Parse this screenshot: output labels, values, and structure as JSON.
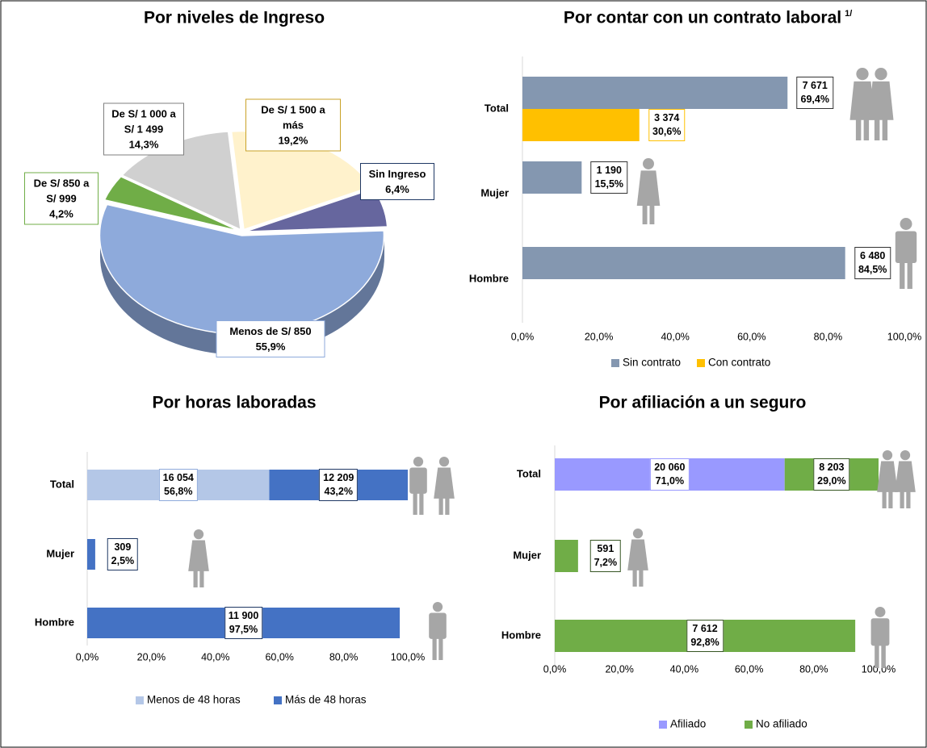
{
  "chart_data": [
    {
      "type": "pie",
      "title": "Por niveles de Ingreso",
      "categories": [
        "De S/ 1 500 a más",
        "Sin Ingreso",
        "Menos de S/ 850",
        "De S/ 850 a S/ 999",
        "De S/ 1 000 a S/ 1 499"
      ],
      "values": [
        19.2,
        6.4,
        55.9,
        4.2,
        14.3
      ],
      "value_labels": [
        "19,2%",
        "6,4%",
        "55,9%",
        "4,2%",
        "14,3%"
      ],
      "colors": [
        "#fff2cc",
        "#66669e",
        "#8eaadb",
        "#70ad47",
        "#d0d0d0"
      ]
    },
    {
      "type": "bar",
      "title": "Por contar con un contrato laboral",
      "title_note": "1/",
      "categories": [
        "Total",
        "Mujer",
        "Hombre"
      ],
      "series": [
        {
          "name": "Sin contrato",
          "color": "#8497b0",
          "values": [
            69.4,
            15.5,
            84.5
          ],
          "value_labels": [
            "69,4%",
            "15,5%",
            "84,5%"
          ],
          "count_labels": [
            "7 671",
            "1 190",
            "6 480"
          ]
        },
        {
          "name": "Con contrato",
          "color": "#ffc000",
          "values": [
            30.6,
            null,
            null
          ],
          "value_labels": [
            "30,6%",
            null,
            null
          ],
          "count_labels": [
            "3 374",
            null,
            null
          ]
        }
      ],
      "xlim": [
        0,
        100
      ],
      "xticks": [
        {
          "value": 0,
          "label": "0,0%"
        },
        {
          "value": 20,
          "label": "20,0%"
        },
        {
          "value": 40,
          "label": "40,0%"
        },
        {
          "value": 60,
          "label": "60,0%"
        },
        {
          "value": 80,
          "label": "80,0%"
        },
        {
          "value": 100,
          "label": "100,0%"
        }
      ],
      "legend": "bottom"
    },
    {
      "type": "stacked_bar",
      "title": "Por horas laboradas",
      "categories": [
        "Total",
        "Mujer",
        "Hombre"
      ],
      "series": [
        {
          "name": "Menos de 48 horas",
          "color": "#b4c7e7",
          "values": [
            56.8,
            null,
            null
          ],
          "value_labels": [
            "56,8%",
            null,
            null
          ],
          "count_labels": [
            "16 054",
            null,
            null
          ]
        },
        {
          "name": "Más de 48 horas",
          "color": "#4472c4",
          "values": [
            43.2,
            2.5,
            97.5
          ],
          "value_labels": [
            "43,2%",
            "2,5%",
            "97,5%"
          ],
          "count_labels": [
            "12 209",
            "309",
            "11 900"
          ]
        }
      ],
      "xlim": [
        0,
        100
      ],
      "xticks": [
        {
          "value": 0,
          "label": "0,0%"
        },
        {
          "value": 20,
          "label": "20,0%"
        },
        {
          "value": 40,
          "label": "40,0%"
        },
        {
          "value": 60,
          "label": "60,0%"
        },
        {
          "value": 80,
          "label": "80,0%"
        },
        {
          "value": 100,
          "label": "100,0%"
        }
      ],
      "legend": "bottom"
    },
    {
      "type": "stacked_bar",
      "title": "Por afiliación a un seguro",
      "categories": [
        "Total",
        "Mujer",
        "Hombre"
      ],
      "series": [
        {
          "name": "Afiliado",
          "color": "#9999ff",
          "values": [
            71.0,
            null,
            null
          ],
          "value_labels": [
            "71,0%",
            null,
            null
          ],
          "count_labels": [
            "20 060",
            null,
            null
          ]
        },
        {
          "name": "No afiliado",
          "color": "#70ad47",
          "values": [
            29.0,
            7.2,
            92.8
          ],
          "value_labels": [
            "29,0%",
            "7,2%",
            "92,8%"
          ],
          "count_labels": [
            "8 203",
            "591",
            "7 612"
          ]
        }
      ],
      "xlim": [
        0,
        100
      ],
      "xticks": [
        {
          "value": 0,
          "label": "0,0%"
        },
        {
          "value": 20,
          "label": "20,0%"
        },
        {
          "value": 40,
          "label": "40,0%"
        },
        {
          "value": 60,
          "label": "60,0%"
        },
        {
          "value": 80,
          "label": "80,0%"
        },
        {
          "value": 100,
          "label": "100,0%"
        }
      ],
      "legend": "bottom"
    }
  ]
}
